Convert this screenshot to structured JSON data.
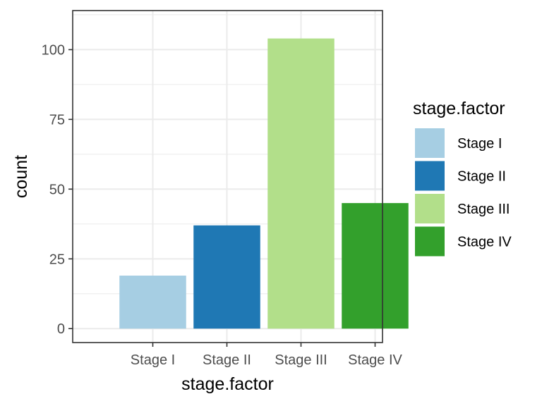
{
  "chart_data": {
    "type": "bar",
    "categories": [
      "Stage I",
      "Stage II",
      "Stage III",
      "Stage IV"
    ],
    "values": [
      19,
      37,
      104,
      45
    ],
    "colors": [
      "#a6cee3",
      "#1f78b4",
      "#b2df8a",
      "#33a02c"
    ],
    "xlabel": "stage.factor",
    "ylabel": "count",
    "ylim": [
      -5,
      114
    ],
    "yticks": [
      0,
      25,
      50,
      75,
      100
    ],
    "grid": true,
    "legend": {
      "title": "stage.factor",
      "position": "right",
      "entries": [
        "Stage I",
        "Stage II",
        "Stage III",
        "Stage IV"
      ]
    }
  }
}
